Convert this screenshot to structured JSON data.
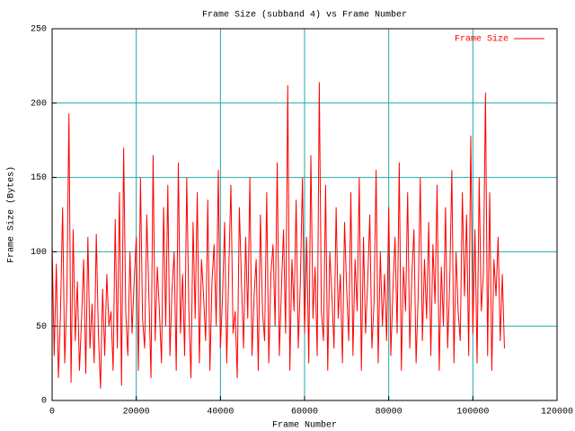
{
  "chart_data": {
    "type": "line",
    "title": "Frame Size (subband 4) vs Frame Number",
    "x_label": "Frame Number",
    "y_label": "Frame Size (Bytes)",
    "xlim": [
      0,
      120000
    ],
    "xticks": [
      0,
      20000,
      40000,
      60000,
      80000,
      100000,
      120000
    ],
    "ylim": [
      0,
      250
    ],
    "yticks": [
      0,
      50,
      100,
      150,
      200,
      250
    ],
    "grid": true,
    "grid_color": "#20a8a8",
    "legend": "top-right",
    "x": [
      0,
      500,
      1000,
      1500,
      2000,
      2500,
      3000,
      3500,
      4000,
      4500,
      5000,
      5500,
      6000,
      6500,
      7000,
      7500,
      8000,
      8500,
      9000,
      9500,
      10000,
      10500,
      11000,
      11500,
      12000,
      12500,
      13000,
      13500,
      14000,
      14500,
      15000,
      15500,
      16000,
      16500,
      17000,
      17500,
      18000,
      18500,
      19000,
      19500,
      20000,
      20500,
      21000,
      21500,
      22000,
      22500,
      23000,
      23500,
      24000,
      24500,
      25000,
      25500,
      26000,
      26500,
      27000,
      27500,
      28000,
      28500,
      29000,
      29500,
      30000,
      30500,
      31000,
      31500,
      32000,
      32500,
      33000,
      33500,
      34000,
      34500,
      35000,
      35500,
      36000,
      36500,
      37000,
      37500,
      38000,
      38500,
      39000,
      39500,
      40000,
      40500,
      41000,
      41500,
      42000,
      42500,
      43000,
      43500,
      44000,
      44500,
      45000,
      45500,
      46000,
      46500,
      47000,
      47500,
      48000,
      48500,
      49000,
      49500,
      50000,
      50500,
      51000,
      51500,
      52000,
      52500,
      53000,
      53500,
      54000,
      54500,
      55000,
      55500,
      56000,
      56500,
      57000,
      57500,
      58000,
      58500,
      59000,
      59500,
      60000,
      60500,
      61000,
      61500,
      62000,
      62500,
      63000,
      63500,
      64000,
      64500,
      65000,
      65500,
      66000,
      66500,
      67000,
      67500,
      68000,
      68500,
      69000,
      69500,
      70000,
      70500,
      71000,
      71500,
      72000,
      72500,
      73000,
      73500,
      74000,
      74500,
      75000,
      75500,
      76000,
      76500,
      77000,
      77500,
      78000,
      78500,
      79000,
      79500,
      80000,
      80500,
      81000,
      81500,
      82000,
      82500,
      83000,
      83500,
      84000,
      84500,
      85000,
      85500,
      86000,
      86500,
      87000,
      87500,
      88000,
      88500,
      89000,
      89500,
      90000,
      90500,
      91000,
      91500,
      92000,
      92500,
      93000,
      93500,
      94000,
      94500,
      95000,
      95500,
      96000,
      96500,
      97000,
      97500,
      98000,
      98500,
      99000,
      99500,
      100000,
      100500,
      101000,
      101500,
      102000,
      102500,
      103000,
      103500,
      104000,
      104500,
      105000,
      105500,
      106000,
      106500,
      107000,
      107500
    ],
    "series": [
      {
        "name": "Frame Size",
        "color": "#ff0000",
        "values": [
          105,
          30,
          92,
          15,
          60,
          130,
          25,
          70,
          193,
          12,
          115,
          40,
          80,
          20,
          55,
          95,
          18,
          110,
          35,
          65,
          25,
          112,
          45,
          8,
          75,
          30,
          85,
          50,
          60,
          20,
          122,
          35,
          140,
          10,
          170,
          60,
          30,
          100,
          45,
          80,
          110,
          20,
          150,
          55,
          35,
          125,
          70,
          15,
          165,
          40,
          90,
          60,
          25,
          130,
          50,
          145,
          30,
          75,
          100,
          20,
          160,
          45,
          85,
          30,
          150,
          60,
          15,
          120,
          55,
          140,
          25,
          95,
          70,
          40,
          135,
          20,
          80,
          105,
          50,
          155,
          35,
          70,
          120,
          25,
          90,
          145,
          45,
          60,
          15,
          130,
          80,
          35,
          110,
          55,
          150,
          30,
          70,
          95,
          20,
          125,
          60,
          40,
          140,
          25,
          85,
          105,
          50,
          160,
          30,
          75,
          115,
          45,
          212,
          20,
          95,
          60,
          135,
          35,
          80,
          150,
          45,
          110,
          25,
          165,
          55,
          90,
          30,
          214,
          60,
          40,
          145,
          20,
          100,
          70,
          35,
          130,
          55,
          85,
          25,
          120,
          75,
          40,
          140,
          30,
          95,
          60,
          150,
          20,
          110,
          45,
          80,
          125,
          35,
          65,
          155,
          25,
          100,
          50,
          85,
          40,
          130,
          30,
          75,
          110,
          45,
          160,
          20,
          90,
          60,
          140,
          35,
          85,
          115,
          25,
          70,
          150,
          40,
          95,
          55,
          120,
          30,
          105,
          65,
          145,
          20,
          90,
          50,
          130,
          35,
          80,
          155,
          25,
          100,
          60,
          40,
          140,
          70,
          125,
          30,
          178,
          45,
          115,
          25,
          150,
          60,
          85,
          207,
          30,
          140,
          20,
          95,
          70,
          110,
          40,
          85,
          35
        ]
      }
    ]
  }
}
